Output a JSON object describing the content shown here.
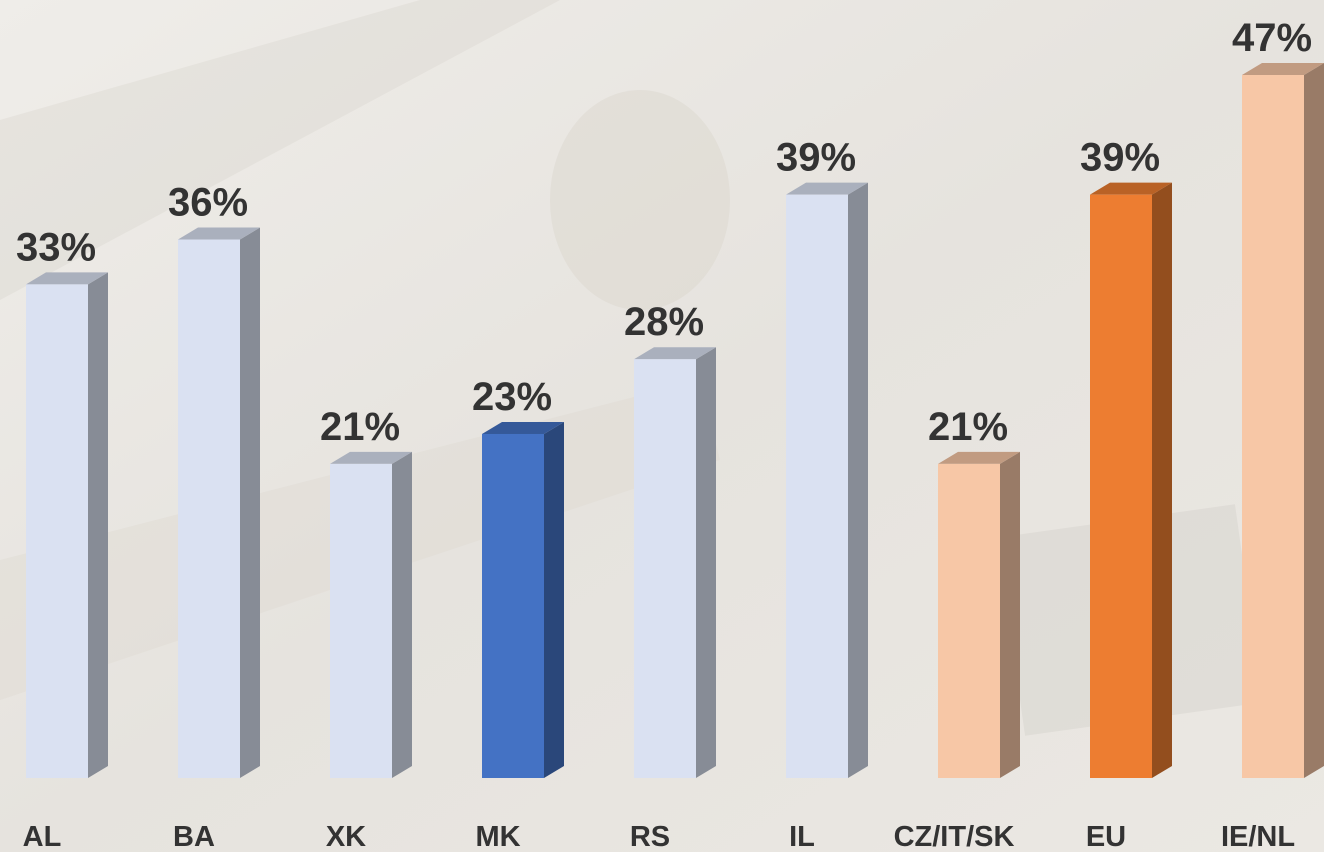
{
  "chart_data": {
    "type": "bar3d",
    "categories": [
      "AL",
      "BA",
      "XK",
      "MK",
      "RS",
      "IL",
      "CZ/IT/SK",
      "EU",
      "IE/NL"
    ],
    "values": [
      33,
      36,
      21,
      23,
      28,
      39,
      21,
      39,
      47
    ],
    "value_labels": [
      "33%",
      "36%",
      "21%",
      "23%",
      "28%",
      "39%",
      "21%",
      "39%",
      "47%"
    ],
    "colors": [
      "#dae1f2",
      "#dae1f2",
      "#dae1f2",
      "#4472c4",
      "#dae1f2",
      "#dae1f2",
      "#f7c7a6",
      "#ed7d31",
      "#f7c7a6"
    ]
  }
}
